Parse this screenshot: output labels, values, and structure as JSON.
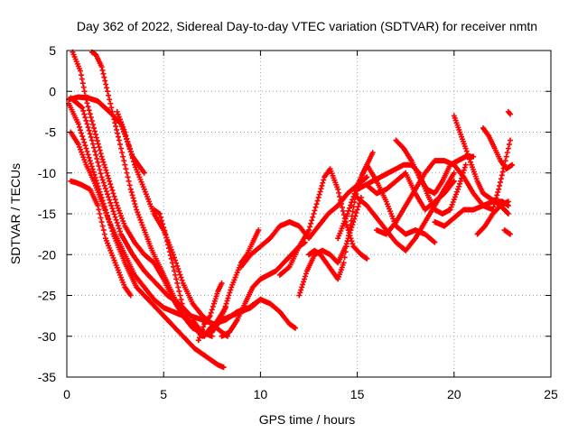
{
  "chart_data": {
    "type": "scatter",
    "title": "Day 362 of 2022, Sidereal Day-to-day VTEC variation (SDTVAR) for receiver nmtn",
    "xlabel": "GPS time / hours",
    "ylabel": "SDTVAR / TECUs",
    "xlim": [
      0,
      25
    ],
    "ylim": [
      -35,
      5
    ],
    "xticks": [
      "0",
      "5",
      "10",
      "15",
      "20",
      "25"
    ],
    "yticks": [
      "5",
      "0",
      "-5",
      "-10",
      "-15",
      "-20",
      "-25",
      "-30",
      "-35"
    ],
    "grid": true,
    "marker": "plus",
    "color": "#ff0000",
    "series": [
      {
        "x": [
          0.1,
          0.6,
          1.2,
          1.8,
          2.4,
          3.0,
          3.6,
          4.2,
          4.8,
          5.4,
          6.0,
          6.6,
          7.2,
          7.8,
          8.1
        ],
        "y": [
          -1.5,
          -4.0,
          -8.5,
          -13.0,
          -17.5,
          -21.0,
          -24.0,
          -25.5,
          -27.0,
          -28.5,
          -30.0,
          -31.5,
          -32.5,
          -33.5,
          -33.8
        ]
      },
      {
        "x": [
          0.2,
          0.8,
          1.3,
          1.8,
          2.3,
          2.8,
          3.4,
          4.0,
          4.6,
          5.2,
          5.8,
          6.4,
          7.0,
          7.6,
          8.2,
          8.8,
          9.4,
          10.0
        ],
        "y": [
          -0.8,
          -2.0,
          -6.0,
          -10.5,
          -14.0,
          -17.5,
          -20.0,
          -22.0,
          -23.5,
          -25.0,
          -26.0,
          -27.5,
          -28.0,
          -28.5,
          -28.0,
          -27.0,
          -26.5,
          -25.5
        ]
      },
      {
        "x": [
          0.2,
          0.6,
          1.0,
          1.4,
          1.8,
          2.2,
          2.6,
          3.0,
          3.5,
          4.0,
          4.5,
          5.0,
          5.5,
          6.0
        ],
        "y": [
          -5.0,
          -6.5,
          -9.0,
          -11.0,
          -13.5,
          -16.0,
          -18.0,
          -20.0,
          -22.5,
          -24.0,
          -25.5,
          -26.5,
          -27.0,
          -27.5
        ]
      },
      {
        "x": [
          0.2,
          0.5,
          0.8,
          1.2,
          1.6,
          2.0,
          2.5,
          3.0,
          3.3
        ],
        "y": [
          -11.0,
          -11.2,
          -11.5,
          -12.0,
          -14.0,
          -18.0,
          -21.0,
          -24.0,
          -25.0
        ]
      },
      {
        "x": [
          0.3,
          0.7,
          1.0,
          1.4,
          1.8,
          2.2,
          2.6,
          3.0,
          3.5,
          4.0,
          4.5,
          5.0,
          5.5,
          6.0,
          6.5,
          7.0,
          7.5
        ],
        "y": [
          4.8,
          2.5,
          -1.0,
          -4.5,
          -8.0,
          -11.0,
          -14.0,
          -16.5,
          -18.5,
          -20.0,
          -21.0,
          -23.0,
          -25.5,
          -27.5,
          -29.0,
          -29.5,
          -30.0
        ]
      },
      {
        "x": [
          1.3,
          1.5,
          1.8,
          2.1,
          2.4,
          2.7,
          3.0,
          3.3,
          3.6,
          4.0,
          4.4,
          4.8,
          5.2,
          5.6,
          6.0
        ],
        "y": [
          4.8,
          4.5,
          3.0,
          0.0,
          -3.0,
          -6.0,
          -9.0,
          -12.0,
          -14.5,
          -17.0,
          -19.5,
          -21.5,
          -23.5,
          -25.5,
          -27.5
        ]
      },
      {
        "x": [
          0.1,
          0.6,
          1.1,
          1.6,
          2.2,
          2.8,
          3.4,
          4.0
        ],
        "y": [
          -1.0,
          -0.7,
          -0.8,
          -1.2,
          -2.5,
          -4.0,
          -8.0,
          -10.0
        ]
      },
      {
        "x": [
          2.6,
          3.0,
          3.5,
          4.0,
          4.5,
          5.0,
          5.5,
          6.0,
          6.5,
          7.0,
          7.5,
          8.0,
          8.3
        ],
        "y": [
          -2.5,
          -5.0,
          -9.0,
          -12.0,
          -15.0,
          -17.0,
          -20.0,
          -23.5,
          -26.0,
          -27.5,
          -28.5,
          -29.5,
          -30.0
        ]
      },
      {
        "x": [
          4.5,
          4.8,
          5.1,
          5.4,
          5.7,
          6.0,
          6.3,
          6.6,
          7.0,
          7.4,
          7.8,
          8.2
        ],
        "y": [
          -14.5,
          -15.0,
          -17.5,
          -20.5,
          -23.5,
          -26.5,
          -28.0,
          -29.0,
          -30.0,
          -29.5,
          -28.0,
          -26.5
        ]
      },
      {
        "x": [
          6.5,
          6.8,
          7.1,
          7.4,
          7.7,
          8.0,
          8.5,
          9.0,
          9.5,
          10.0,
          10.5,
          11.0,
          11.5,
          11.8
        ],
        "y": [
          -28.0,
          -29.0,
          -30.0,
          -29.0,
          -28.5,
          -28.0,
          -27.5,
          -27.0,
          -26.5,
          -25.5,
          -26.0,
          -27.0,
          -28.5,
          -29.0
        ]
      },
      {
        "x": [
          7.5,
          7.8,
          8.1,
          8.5,
          9.0,
          9.3,
          9.6,
          9.9
        ],
        "y": [
          -29.5,
          -28.5,
          -27.0,
          -24.0,
          -21.0,
          -20.0,
          -18.5,
          -17.0
        ]
      },
      {
        "x": [
          6.8,
          7.1,
          7.4,
          7.6,
          7.8,
          8.0
        ],
        "y": [
          -30.5,
          -28.5,
          -27.5,
          -26.0,
          -24.5,
          -23.5
        ]
      },
      {
        "x": [
          8.0,
          8.4,
          8.8,
          9.2,
          9.6,
          10.0,
          10.4,
          10.8,
          11.2,
          11.6,
          12.0,
          12.3
        ],
        "y": [
          -30.0,
          -29.5,
          -28.0,
          -26.0,
          -24.0,
          -23.0,
          -22.5,
          -22.0,
          -21.0,
          -20.0,
          -19.0,
          -18.5
        ]
      },
      {
        "x": [
          9.0,
          9.5,
          10.0,
          10.5,
          11.0,
          11.5,
          12.0,
          12.5,
          13.0,
          13.5,
          14.0,
          14.5,
          15.0,
          15.5
        ],
        "y": [
          -21.5,
          -20.0,
          -19.0,
          -18.0,
          -16.5,
          -16.0,
          -16.5,
          -18.0,
          -16.5,
          -15.0,
          -14.0,
          -12.5,
          -11.5,
          -10.5
        ]
      },
      {
        "x": [
          11.0,
          11.5,
          12.0,
          12.5,
          13.0,
          13.3,
          13.6,
          14.0,
          14.4,
          14.8,
          15.2,
          15.5
        ],
        "y": [
          -22.5,
          -21.5,
          -19.0,
          -17.0,
          -13.0,
          -10.5,
          -9.5,
          -12.0,
          -16.0,
          -19.0,
          -20.0,
          -20.5
        ]
      },
      {
        "x": [
          12.0,
          12.4,
          12.8,
          13.2,
          13.6,
          14.0,
          14.4,
          14.8,
          15.2
        ],
        "y": [
          -25.0,
          -22.0,
          -20.0,
          -19.5,
          -20.0,
          -21.0,
          -19.0,
          -16.0,
          -13.0
        ]
      },
      {
        "x": [
          12.5,
          12.8,
          13.1,
          13.4,
          13.7,
          14.0,
          14.3,
          14.6,
          14.9,
          15.2,
          15.5,
          15.8
        ],
        "y": [
          -20.0,
          -19.5,
          -20.0,
          -21.0,
          -22.0,
          -23.0,
          -21.0,
          -17.0,
          -13.0,
          -10.5,
          -9.0,
          -7.5
        ]
      },
      {
        "x": [
          14.0,
          14.5,
          15.0,
          15.5,
          16.0,
          16.5,
          17.0,
          17.5,
          18.0,
          18.5,
          19.0
        ],
        "y": [
          -18.0,
          -15.0,
          -11.5,
          -9.0,
          -11.0,
          -13.5,
          -16.5,
          -17.5,
          -17.0,
          -17.5,
          -18.5
        ]
      },
      {
        "x": [
          15.0,
          15.5,
          16.0,
          16.5,
          17.0,
          17.5,
          18.0,
          18.5,
          19.0,
          19.5,
          20.0
        ],
        "y": [
          -13.0,
          -14.0,
          -15.5,
          -17.0,
          -18.5,
          -19.5,
          -18.0,
          -16.0,
          -14.0,
          -12.0,
          -10.0
        ]
      },
      {
        "x": [
          15.5,
          16.0,
          16.5,
          17.0,
          17.5,
          18.0,
          18.5,
          19.0,
          19.5,
          20.0
        ],
        "y": [
          -11.5,
          -12.5,
          -12.0,
          -11.0,
          -10.0,
          -12.5,
          -14.5,
          -13.5,
          -12.5,
          -11.0
        ]
      },
      {
        "x": [
          15.0,
          15.4,
          15.8,
          16.2,
          16.6,
          17.0,
          17.4,
          17.8,
          18.2,
          18.6,
          19.0,
          19.4,
          19.8,
          20.2,
          20.6
        ],
        "y": [
          -12.0,
          -11.5,
          -11.0,
          -10.5,
          -10.0,
          -9.5,
          -9.0,
          -9.0,
          -10.0,
          -12.5,
          -14.5,
          -15.0,
          -14.5,
          -12.0,
          -9.0
        ]
      },
      {
        "x": [
          17.0,
          17.4,
          17.8,
          18.2,
          18.6,
          19.0,
          19.4,
          19.8,
          20.2,
          20.6,
          21.0
        ],
        "y": [
          -6.0,
          -7.0,
          -8.5,
          -10.5,
          -12.0,
          -12.5,
          -11.0,
          -9.0,
          -8.5,
          -8.0,
          -8.0
        ]
      },
      {
        "x": [
          16.0,
          16.5,
          17.0,
          17.5,
          18.0,
          18.5,
          19.0,
          19.5,
          20.0,
          20.5,
          21.0,
          21.5,
          22.0
        ],
        "y": [
          -17.0,
          -17.5,
          -16.0,
          -14.0,
          -12.0,
          -10.0,
          -8.5,
          -8.5,
          -9.0,
          -10.5,
          -12.5,
          -14.0,
          -14.5
        ]
      },
      {
        "x": [
          20.0,
          20.3,
          20.6,
          20.9,
          21.2,
          21.5,
          21.8,
          22.1,
          22.4,
          22.8
        ],
        "y": [
          -3.0,
          -5.0,
          -7.0,
          -9.0,
          -11.0,
          -12.5,
          -13.0,
          -13.5,
          -14.0,
          -15.0
        ]
      },
      {
        "x": [
          21.5,
          21.8,
          22.1,
          22.4,
          22.7,
          23.0
        ],
        "y": [
          -4.5,
          -5.5,
          -7.0,
          -8.5,
          -9.5,
          -9.0
        ]
      },
      {
        "x": [
          19.0,
          19.5,
          20.0,
          20.5,
          21.0,
          21.5,
          22.0,
          22.5,
          22.8
        ],
        "y": [
          -16.0,
          -16.5,
          -15.5,
          -14.5,
          -14.5,
          -14.0,
          -13.5,
          -13.5,
          -14.0
        ]
      },
      {
        "x": [
          21.2,
          21.6,
          22.0,
          22.4,
          22.8
        ],
        "y": [
          -17.5,
          -16.5,
          -15.0,
          -14.0,
          -13.5
        ]
      },
      {
        "x": [
          22.0,
          22.3,
          22.6,
          22.9
        ],
        "y": [
          -14.5,
          -12.0,
          -9.0,
          -6.0
        ]
      },
      {
        "x": [
          22.8,
          22.9
        ],
        "y": [
          -2.5,
          -2.8
        ]
      },
      {
        "x": [
          22.6,
          22.9
        ],
        "y": [
          -17.0,
          -17.5
        ]
      }
    ]
  }
}
